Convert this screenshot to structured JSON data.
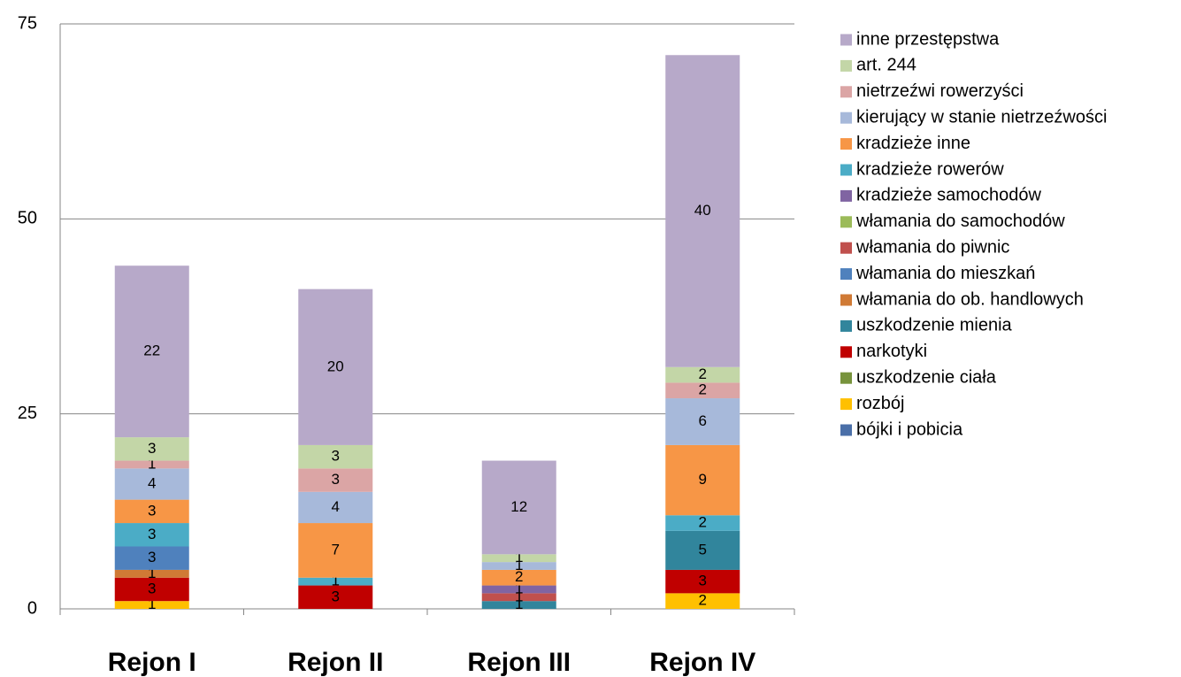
{
  "chart_data": {
    "type": "stacked_bar",
    "categories": [
      "Rejon I",
      "Rejon II",
      "Rejon III",
      "Rejon IV"
    ],
    "ylim": [
      0,
      75
    ],
    "yticks": [
      0,
      25,
      50,
      75
    ],
    "grid": true,
    "legend": "right",
    "series": [
      {
        "name": "bójki i pobicia",
        "color": "#4a6fa8",
        "values": [
          0,
          0,
          0,
          0
        ]
      },
      {
        "name": "rozbój",
        "color": "#ffc000",
        "values": [
          1,
          0,
          0,
          2
        ]
      },
      {
        "name": "uszkodzenie ciała",
        "color": "#77933c",
        "values": [
          0,
          0,
          0,
          0
        ]
      },
      {
        "name": "narkotyki",
        "color": "#c00000",
        "values": [
          3,
          3,
          0,
          3
        ]
      },
      {
        "name": "uszkodzenie mienia",
        "color": "#31859c",
        "values": [
          0,
          0,
          1,
          5
        ]
      },
      {
        "name": "włamania do ob. handlowych",
        "color": "#d07a35",
        "values": [
          1,
          0,
          0,
          0
        ]
      },
      {
        "name": "włamania do mieszkań",
        "color": "#4f81bd",
        "values": [
          3,
          0,
          0,
          0
        ]
      },
      {
        "name": "włamania do piwnic",
        "color": "#c0504d",
        "values": [
          0,
          0,
          1,
          0
        ]
      },
      {
        "name": "włamania do samochodów",
        "color": "#9bbb59",
        "values": [
          0,
          0,
          0,
          0
        ]
      },
      {
        "name": "kradzieże samochodów",
        "color": "#8064a2",
        "values": [
          0,
          0,
          1,
          0
        ]
      },
      {
        "name": "kradzieże rowerów",
        "color": "#4bacc6",
        "values": [
          3,
          1,
          0,
          2
        ]
      },
      {
        "name": "kradzieże inne",
        "color": "#f79646",
        "values": [
          3,
          7,
          2,
          9
        ]
      },
      {
        "name": "kierujący w stanie nietrzeźwości",
        "color": "#a7b9da",
        "values": [
          4,
          4,
          1,
          6
        ]
      },
      {
        "name": "nietrzeźwi rowerzyści",
        "color": "#dba5a5",
        "values": [
          1,
          3,
          0,
          2
        ]
      },
      {
        "name": "art. 244",
        "color": "#c3d6a7",
        "values": [
          3,
          3,
          1,
          2
        ]
      },
      {
        "name": "inne przestępstwa",
        "color": "#b7a9c9",
        "values": [
          22,
          20,
          12,
          40
        ]
      }
    ]
  }
}
